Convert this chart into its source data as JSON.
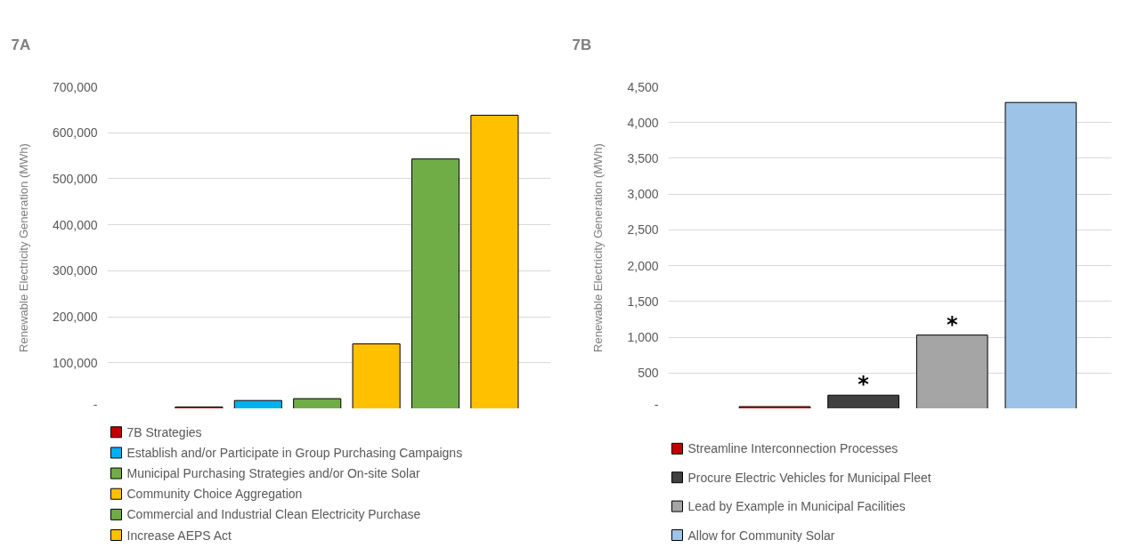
{
  "chart_data": [
    {
      "type": "bar",
      "title": "7A",
      "ylabel": "Renewable Electricity Generation (MWh)",
      "categories": [
        null
      ],
      "series": [
        {
          "name": "7B Strategies",
          "color": "#c00000",
          "values": [
            4000
          ]
        },
        {
          "name": "Establish and/or Participate in Group Purchasing Campaigns",
          "color": "#00b0f0",
          "values": [
            18000
          ]
        },
        {
          "name": "Municipal Purchasing Strategies and/or On-site Solar",
          "color": "#70ad47",
          "values": [
            22000
          ]
        },
        {
          "name": "Community Choice Aggregation",
          "color": "#ffc000",
          "values": [
            141000
          ]
        },
        {
          "name": "Commercial and Industrial Clean Electricity Purchase",
          "color": "#70ad47",
          "values": [
            543000
          ]
        },
        {
          "name": "Increase AEPS Act",
          "color": "#ffc000",
          "values": [
            638000
          ]
        }
      ],
      "ylim": [
        0,
        700000
      ],
      "yticks": [
        {
          "value": 0,
          "label": "-"
        },
        {
          "value": 100000,
          "label": "100,000"
        },
        {
          "value": 200000,
          "label": "200,000"
        },
        {
          "value": 300000,
          "label": "300,000"
        },
        {
          "value": 400000,
          "label": "400,000"
        },
        {
          "value": 500000,
          "label": "500,000"
        },
        {
          "value": 600000,
          "label": "600,000"
        },
        {
          "value": 700000,
          "label": "700,000"
        }
      ],
      "grid": "y",
      "legend": "bottom",
      "tick_labels": "y"
    },
    {
      "type": "bar",
      "title": "7B",
      "ylabel": "Renewable Electricity Generation (MWh)",
      "categories": [
        null
      ],
      "series": [
        {
          "name": "Streamline Interconnection Processes",
          "color": "#c00000",
          "values": [
            30
          ]
        },
        {
          "name": "Procure Electric Vehicles for Municipal Fleet",
          "color": "#404040",
          "values": [
            190
          ],
          "value_labels": [
            "*"
          ]
        },
        {
          "name": "Lead by Example in Municipal Facilities",
          "color": "#a5a5a5",
          "values": [
            1030
          ],
          "value_labels": [
            "*"
          ]
        },
        {
          "name": "Allow for Community Solar",
          "color": "#9dc3e6",
          "values": [
            4280
          ]
        }
      ],
      "ylim": [
        0,
        4500
      ],
      "yticks": [
        {
          "value": 0,
          "label": "-"
        },
        {
          "value": 500,
          "label": "500"
        },
        {
          "value": 1000,
          "label": "1,000"
        },
        {
          "value": 1500,
          "label": "1,500"
        },
        {
          "value": 2000,
          "label": "2,000"
        },
        {
          "value": 2500,
          "label": "2,500"
        },
        {
          "value": 3000,
          "label": "3,000"
        },
        {
          "value": 3500,
          "label": "3,500"
        },
        {
          "value": 4000,
          "label": "4,000"
        },
        {
          "value": 4500,
          "label": "4,500"
        }
      ],
      "grid": "y",
      "legend": "bottom",
      "tick_labels": "y"
    }
  ]
}
